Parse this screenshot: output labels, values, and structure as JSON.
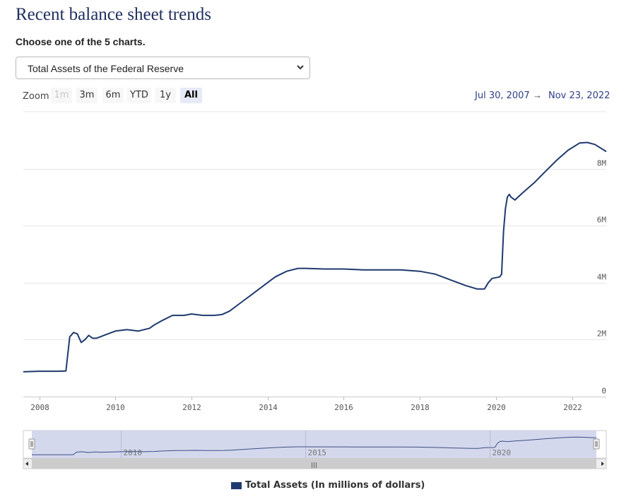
{
  "page": {
    "title": "Recent balance sheet trends",
    "subtitle": "Choose one of the 5 charts."
  },
  "selector": {
    "value": "Total Assets of the Federal Reserve"
  },
  "zoom": {
    "label": "Zoom",
    "buttons": [
      {
        "label": "1m",
        "state": "disabled"
      },
      {
        "label": "3m",
        "state": "normal"
      },
      {
        "label": "6m",
        "state": "normal"
      },
      {
        "label": "YTD",
        "state": "normal"
      },
      {
        "label": "1y",
        "state": "normal"
      },
      {
        "label": "All",
        "state": "active"
      }
    ]
  },
  "range": {
    "from": "Jul 30, 2007",
    "arrow": "→",
    "to": "Nov 23, 2022"
  },
  "colors": {
    "series": "#1f3a6e",
    "navigator_fill": "#cfd4ea",
    "grid": "#e6e6e6"
  },
  "chart_data": {
    "type": "line",
    "title": "",
    "xlabel": "",
    "ylabel": "",
    "x_range": [
      2007.58,
      2022.9
    ],
    "ylim": [
      0,
      10000000
    ],
    "y_ticks": [
      0,
      2000000,
      4000000,
      6000000,
      8000000
    ],
    "y_tick_labels": [
      "0",
      "2M",
      "4M",
      "6M",
      "8M"
    ],
    "y_axis_position": "right",
    "x_ticks": [
      2008,
      2010,
      2012,
      2014,
      2016,
      2018,
      2020,
      2022
    ],
    "x_tick_labels": [
      "2008",
      "2010",
      "2012",
      "2014",
      "2016",
      "2018",
      "2020",
      "2022"
    ],
    "grid": true,
    "legend_position": "bottom",
    "series": [
      {
        "name": "Total Assets (In millions of dollars)",
        "x": [
          2007.58,
          2008.0,
          2008.5,
          2008.7,
          2008.8,
          2008.9,
          2009.0,
          2009.1,
          2009.2,
          2009.3,
          2009.4,
          2009.5,
          2009.6,
          2009.8,
          2010.0,
          2010.3,
          2010.6,
          2010.9,
          2011.0,
          2011.2,
          2011.5,
          2011.8,
          2012.0,
          2012.3,
          2012.6,
          2012.8,
          2013.0,
          2013.3,
          2013.6,
          2013.9,
          2014.2,
          2014.5,
          2014.8,
          2015.0,
          2015.5,
          2016.0,
          2016.5,
          2017.0,
          2017.5,
          2018.0,
          2018.4,
          2018.8,
          2019.2,
          2019.5,
          2019.7,
          2019.8,
          2019.9,
          2020.1,
          2020.15,
          2020.2,
          2020.25,
          2020.3,
          2020.35,
          2020.4,
          2020.5,
          2020.7,
          2021.0,
          2021.3,
          2021.6,
          2021.9,
          2022.2,
          2022.4,
          2022.6,
          2022.9
        ],
        "y": [
          870000,
          890000,
          890000,
          900000,
          2100000,
          2250000,
          2200000,
          1900000,
          2000000,
          2150000,
          2050000,
          2050000,
          2100000,
          2200000,
          2300000,
          2350000,
          2300000,
          2400000,
          2500000,
          2650000,
          2850000,
          2850000,
          2900000,
          2850000,
          2850000,
          2880000,
          3000000,
          3300000,
          3600000,
          3900000,
          4200000,
          4400000,
          4500000,
          4500000,
          4480000,
          4480000,
          4450000,
          4450000,
          4450000,
          4400000,
          4300000,
          4100000,
          3900000,
          3780000,
          3780000,
          4000000,
          4150000,
          4200000,
          4300000,
          5800000,
          6600000,
          7000000,
          7100000,
          7000000,
          6900000,
          7150000,
          7500000,
          7900000,
          8300000,
          8650000,
          8900000,
          8920000,
          8850000,
          8600000
        ]
      }
    ]
  },
  "navigator": {
    "year_labels": [
      "2010",
      "2015",
      "2020"
    ],
    "handle_glyph": "|||"
  }
}
